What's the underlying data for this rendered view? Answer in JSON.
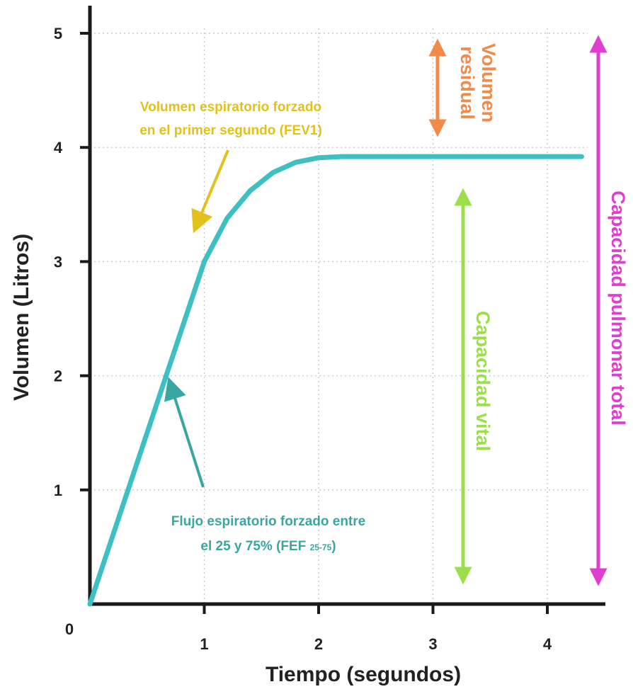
{
  "chart_data": {
    "type": "line",
    "title": "",
    "xlabel": "Tiempo (segundos)",
    "ylabel": "Volumen (Litros)",
    "xlim": [
      0,
      4.5
    ],
    "ylim": [
      0,
      5
    ],
    "origin_label": "0",
    "x_ticks": [
      "1",
      "2",
      "3",
      "4"
    ],
    "y_ticks": [
      "1",
      "2",
      "3",
      "4",
      "5"
    ],
    "grid": "dotted",
    "series": [
      {
        "color": "#3dbfc4",
        "x": [
          0,
          0.2,
          0.4,
          0.6,
          0.8,
          1.0,
          1.2,
          1.4,
          1.6,
          1.8,
          2.0,
          2.2,
          2.5,
          3.0,
          3.5,
          4.0,
          4.3
        ],
        "y": [
          0,
          0.6,
          1.2,
          1.8,
          2.4,
          3.0,
          3.38,
          3.62,
          3.78,
          3.87,
          3.91,
          3.92,
          3.92,
          3.92,
          3.92,
          3.92,
          3.92
        ]
      }
    ],
    "annotations": [
      {
        "id": "fev1",
        "line1": "Volumen espiratorio forzado",
        "line2": "en el primer segundo (FEV1)",
        "color": "#e2c21a"
      },
      {
        "id": "fef",
        "line1": "Flujo espiratorio forzado entre",
        "line2": "el 25 y 75% (FEF",
        "subscript": "25-75",
        "suffix": ")",
        "color": "#3aa6a1"
      },
      {
        "id": "residual",
        "line1": "Volumen",
        "line2": "residual",
        "color": "#f08b4a"
      },
      {
        "id": "vital",
        "line1": "Capacidad vital",
        "color": "#9be04a"
      },
      {
        "id": "total",
        "line1": "Capacidad pulmonar total",
        "color": "#e03ecf"
      }
    ],
    "colors": {
      "axis": "#1a1a1a",
      "grid": "#cccccc",
      "curve": "#3dbfc4"
    }
  }
}
